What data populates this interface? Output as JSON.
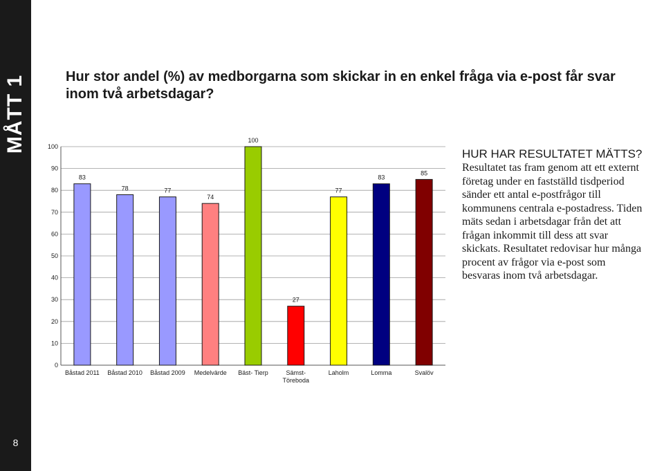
{
  "sidebar": {
    "label": "MÅTT 1",
    "page_number": "8"
  },
  "question": "Hur stor andel (%) av medborgarna som skickar in en enkel fråga via e-post får svar inom två arbetsdagar?",
  "info": {
    "title": "HUR HAR RESULTATET MÄTTS?",
    "body": "Resultatet tas fram genom att ett externt företag under en fastställd tisdperiod sänder ett antal e-postfrågor till kommunens centrala e-postadress. Tiden mäts sedan i arbetsdagar från det att frågan inkommit till dess att svar skickats. Resultatet redovisar hur många procent av frågor via e-post som besvaras inom två arbetsdagar."
  },
  "chart_data": {
    "type": "bar",
    "categories": [
      "Båstad 2011",
      "Båstad 2010",
      "Båstad 2009",
      "Medelvärde",
      "Bäst- Tierp",
      "Sämst-\nTöreboda",
      "Laholm",
      "Lomma",
      "Svalöv"
    ],
    "values": [
      83,
      78,
      77,
      74,
      100,
      27,
      77,
      83,
      85
    ],
    "colors": [
      "#9999ff",
      "#9999ff",
      "#9999ff",
      "#ff8080",
      "#99cc00",
      "#ff0000",
      "#ffff00",
      "#000080",
      "#800000"
    ],
    "ylim": [
      0,
      100
    ],
    "yticks": [
      0,
      10,
      20,
      30,
      40,
      50,
      60,
      70,
      80,
      90,
      100
    ],
    "grid": true,
    "legend": "none"
  }
}
